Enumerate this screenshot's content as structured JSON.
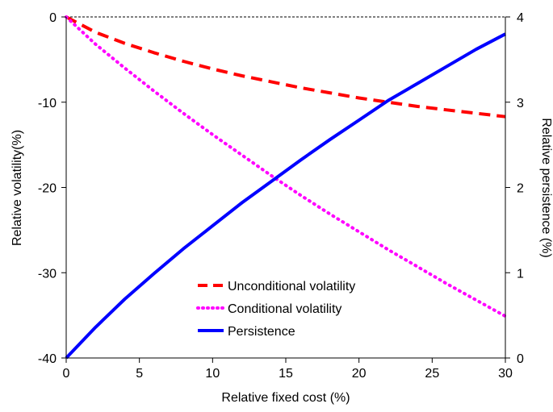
{
  "chart_data": {
    "type": "line",
    "xlabel": "Relative fixed cost (%)",
    "ylabel_left": "Relative volatility(%)",
    "ylabel_right": "Relative persistence  (%)",
    "xlim": [
      0,
      30
    ],
    "ylim_left": [
      -40,
      0
    ],
    "ylim_right": [
      0,
      4
    ],
    "x_ticks": [
      0,
      5,
      10,
      15,
      20,
      25,
      30
    ],
    "y_left_ticks": [
      0,
      -10,
      -20,
      -30,
      -40
    ],
    "y_right_ticks": [
      0,
      1,
      2,
      3,
      4
    ],
    "grid": false,
    "zero_line": true,
    "legend_position": "lower-center",
    "series": [
      {
        "name": "Unconditional volatility",
        "axis": "left",
        "style": "dashed",
        "color": "#ff0000",
        "x": [
          0,
          2,
          4,
          6,
          8,
          10,
          12,
          14,
          16,
          18,
          20,
          22,
          24,
          26,
          28,
          30
        ],
        "y": [
          0,
          -1.8,
          -3.1,
          -4.2,
          -5.2,
          -6.1,
          -6.9,
          -7.6,
          -8.3,
          -8.9,
          -9.5,
          -10.0,
          -10.5,
          -10.9,
          -11.3,
          -11.7
        ]
      },
      {
        "name": "Conditional volatility",
        "axis": "left",
        "style": "dotted",
        "color": "#ff00ff",
        "x": [
          0,
          2,
          4,
          6,
          8,
          10,
          12,
          14,
          16,
          18,
          20,
          22,
          24,
          26,
          28,
          30
        ],
        "y": [
          0,
          -3.2,
          -6.0,
          -8.7,
          -11.3,
          -13.8,
          -16.2,
          -18.6,
          -20.9,
          -23.1,
          -25.2,
          -27.3,
          -29.3,
          -31.3,
          -33.2,
          -35.1
        ]
      },
      {
        "name": "Persistence",
        "axis": "right",
        "style": "solid",
        "color": "#0000ff",
        "x": [
          0,
          2,
          4,
          6,
          8,
          10,
          12,
          14,
          16,
          18,
          20,
          22,
          24,
          26,
          28,
          30
        ],
        "y": [
          0,
          0.36,
          0.69,
          0.99,
          1.28,
          1.55,
          1.82,
          2.07,
          2.32,
          2.56,
          2.79,
          3.02,
          3.22,
          3.42,
          3.62,
          3.8
        ]
      }
    ]
  }
}
